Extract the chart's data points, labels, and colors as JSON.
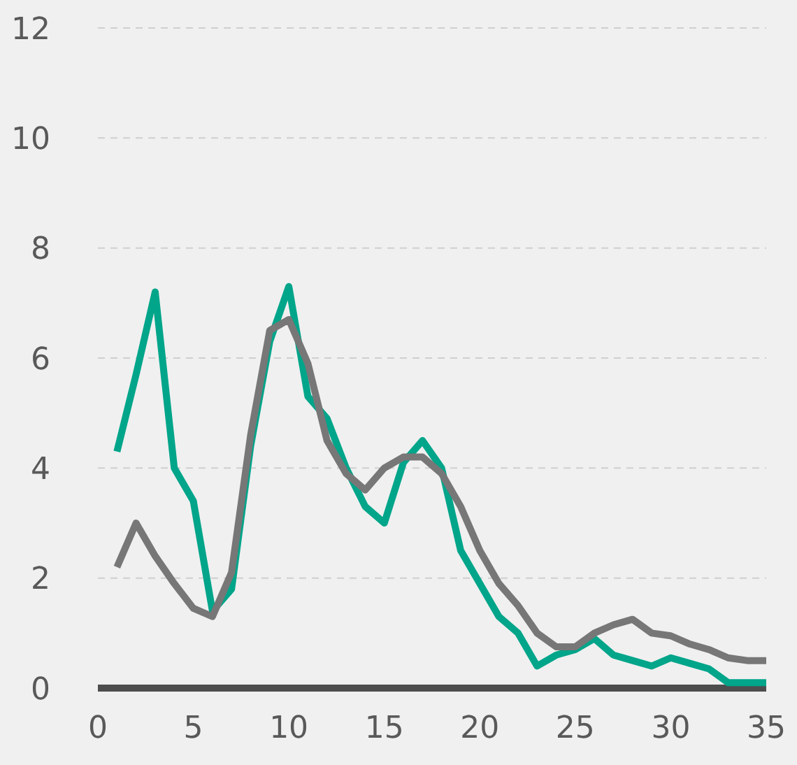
{
  "chart_data": {
    "type": "line",
    "x": [
      1,
      2,
      3,
      4,
      5,
      6,
      7,
      8,
      9,
      10,
      11,
      12,
      13,
      14,
      15,
      16,
      17,
      18,
      19,
      20,
      21,
      22,
      23,
      24,
      25,
      26,
      27,
      28,
      29,
      30,
      31,
      32,
      33,
      34,
      35
    ],
    "series": [
      {
        "color": "#00a58a",
        "values": [
          4.3,
          5.7,
          7.2,
          4.0,
          3.4,
          1.4,
          1.8,
          4.4,
          6.3,
          7.3,
          5.3,
          4.9,
          4.0,
          3.3,
          3.0,
          4.1,
          4.5,
          4.0,
          2.5,
          1.9,
          1.3,
          1.0,
          0.4,
          0.6,
          0.7,
          0.9,
          0.6,
          0.5,
          0.4,
          0.55,
          0.45,
          0.35,
          0.1,
          0.1,
          0.1
        ]
      },
      {
        "color": "#777777",
        "values": [
          2.2,
          3.0,
          2.4,
          1.9,
          1.45,
          1.3,
          2.1,
          4.6,
          6.5,
          6.7,
          5.9,
          4.5,
          3.9,
          3.6,
          4.0,
          4.2,
          4.2,
          3.9,
          3.3,
          2.5,
          1.9,
          1.5,
          1.0,
          0.75,
          0.75,
          1.0,
          1.15,
          1.25,
          1.0,
          0.95,
          0.8,
          0.7,
          0.55,
          0.5,
          0.5
        ]
      }
    ],
    "xlim": [
      0,
      35
    ],
    "xticks": [
      0,
      5,
      10,
      15,
      20,
      25,
      30,
      35
    ],
    "ylim": [
      0,
      12
    ],
    "yticks": [
      0,
      2,
      4,
      6,
      8,
      10,
      12
    ],
    "grid": "y",
    "legend": false,
    "marker": "none",
    "line_style": "solid"
  }
}
